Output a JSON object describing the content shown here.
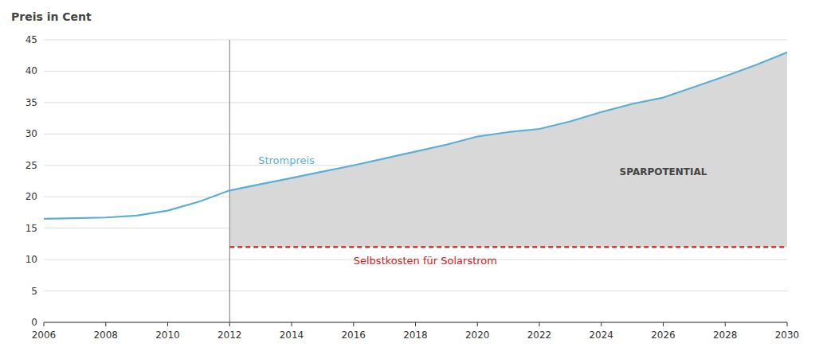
{
  "chart_data": {
    "type": "line",
    "title": "Preis in Cent",
    "x": [
      2006,
      2007,
      2008,
      2009,
      2010,
      2011,
      2012,
      2013,
      2014,
      2015,
      2016,
      2017,
      2018,
      2019,
      2020,
      2021,
      2022,
      2023,
      2024,
      2025,
      2026,
      2027,
      2028,
      2029,
      2030
    ],
    "series": [
      {
        "name": "Strompreis",
        "color": "#5bafd6",
        "line_style": "solid",
        "values": [
          16.5,
          16.6,
          16.7,
          17.0,
          17.8,
          19.2,
          21.0,
          22.0,
          23.0,
          24.0,
          25.0,
          26.1,
          27.2,
          28.3,
          29.6,
          30.3,
          30.8,
          32.0,
          33.5,
          34.8,
          35.8,
          37.5,
          39.2,
          41.0,
          43.0
        ]
      },
      {
        "name": "Selbstkosten für Solarstrom",
        "color": "#cc2222",
        "line_style": "dashed",
        "values": [
          null,
          null,
          null,
          null,
          null,
          null,
          12.0,
          12.0,
          12.0,
          12.0,
          12.0,
          12.0,
          12.0,
          12.0,
          12.0,
          12.0,
          12.0,
          12.0,
          12.0,
          12.0,
          12.0,
          12.0,
          12.0,
          12.0,
          12.0
        ]
      }
    ],
    "annotations": [
      {
        "text": "SPARPOTENTIAL"
      }
    ],
    "xlim": [
      2006,
      2030
    ],
    "xticks": [
      2006,
      2008,
      2010,
      2012,
      2014,
      2016,
      2018,
      2020,
      2022,
      2024,
      2026,
      2028,
      2030
    ],
    "ylim": [
      0,
      45
    ],
    "yticks": [
      0,
      5,
      10,
      15,
      20,
      25,
      30,
      35,
      40,
      45
    ],
    "grid": true
  }
}
